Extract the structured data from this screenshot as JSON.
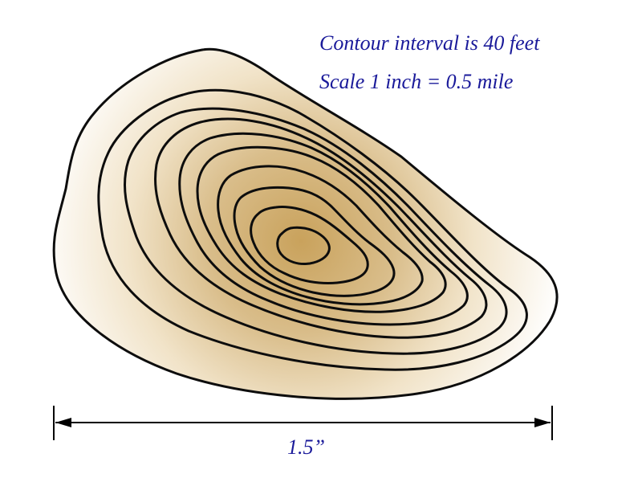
{
  "map": {
    "contour_interval_text": "Contour interval is 40 feet",
    "scale_text": "Scale 1 inch = 0.5 mile",
    "dimension_label": "1.5”",
    "contour_count": 10,
    "colors": {
      "text": "#1a1a9a",
      "contour_line": "#0d0d0d",
      "summit_fill": "#c9a25c",
      "edge_fill": "#ffffff"
    }
  }
}
